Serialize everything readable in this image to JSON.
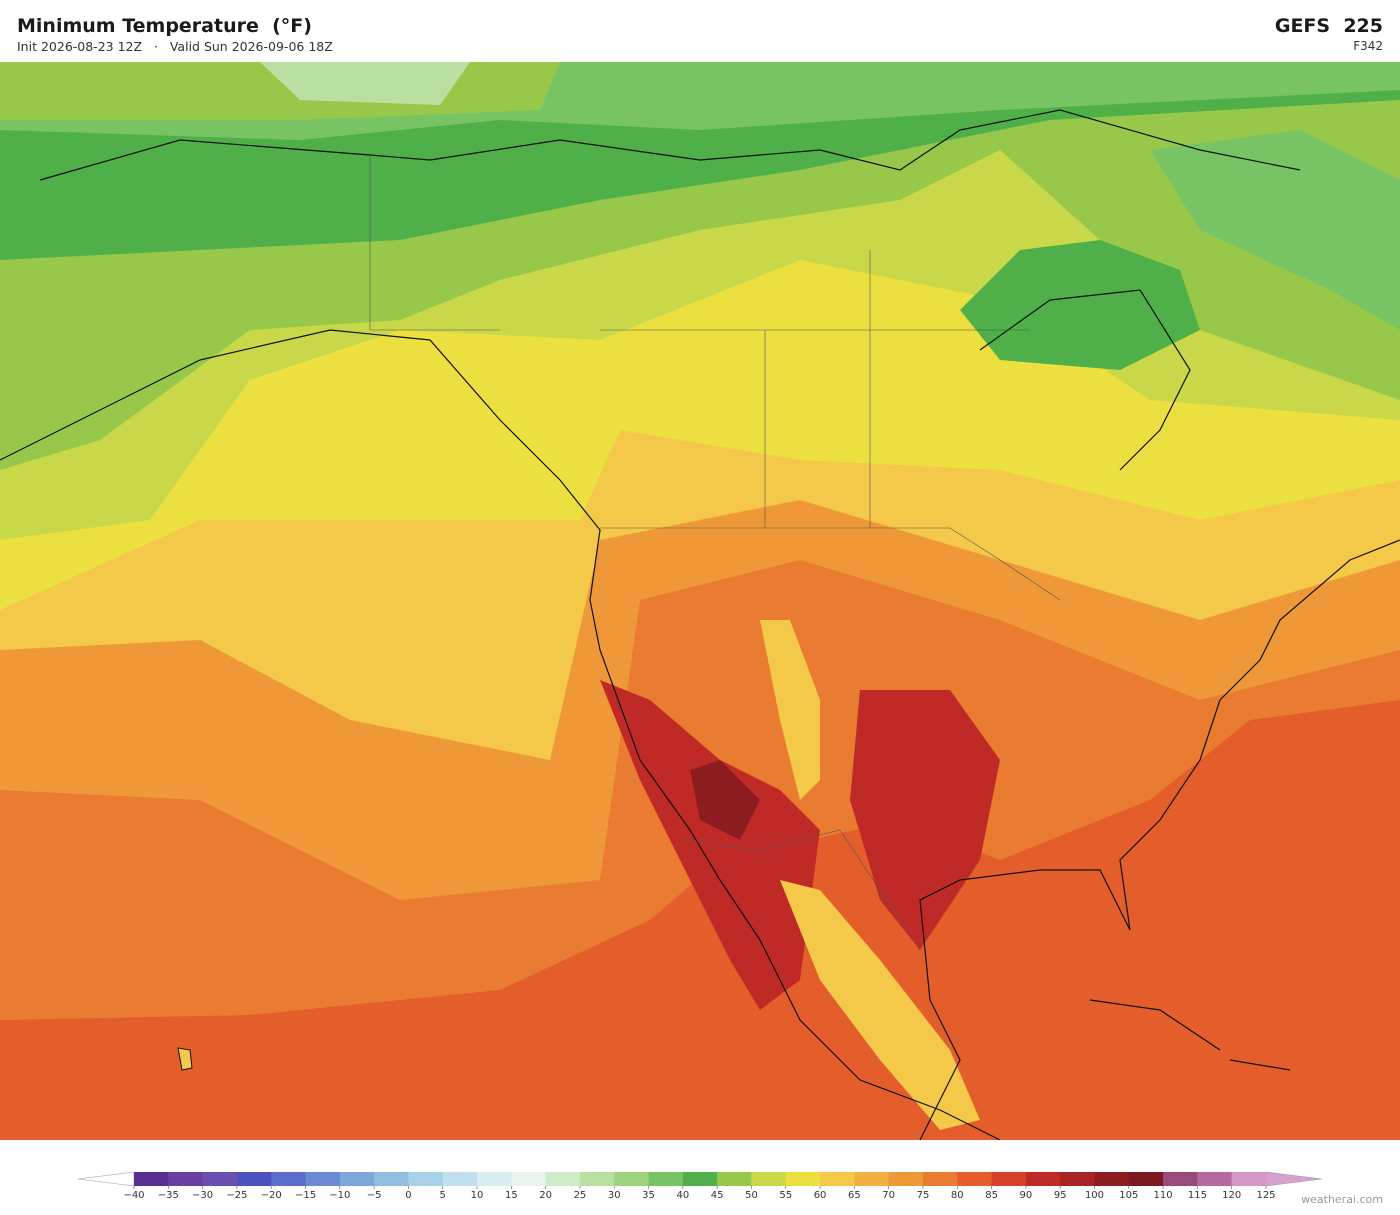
{
  "header": {
    "title": "Minimum Temperature  (°F)",
    "subtitle": "Init 2026-08-23 12Z   ·   Valid Sun 2026-09-06 18Z",
    "model": "GEFS  225",
    "forecast_hour": "F342"
  },
  "colorbar": {
    "ticks": [
      {
        "value": -40,
        "label": "−40"
      },
      {
        "value": -35,
        "label": "−35"
      },
      {
        "value": -30,
        "label": "−30"
      },
      {
        "value": -25,
        "label": "−25"
      },
      {
        "value": -20,
        "label": "−20"
      },
      {
        "value": -15,
        "label": "−15"
      },
      {
        "value": -10,
        "label": "−10"
      },
      {
        "value": -5,
        "label": "−5"
      },
      0,
      5,
      10,
      15,
      20,
      25,
      30,
      35,
      40,
      45,
      50,
      55,
      60,
      65,
      70,
      75,
      80,
      85,
      90,
      95,
      100,
      105,
      110,
      115,
      120,
      125
    ],
    "colors": [
      "#5a2d91",
      "#6a3ea0",
      "#6b4fb0",
      "#4e4fc0",
      "#5a6ccc",
      "#6a8ad4",
      "#7ea6d8",
      "#92bde0",
      "#a8d0e8",
      "#c0e0ee",
      "#d8ecf2",
      "#e8f4ec",
      "#d0ebc8",
      "#b8e0a0",
      "#9ed47e",
      "#78c464",
      "#4fb04a",
      "#98c84a",
      "#c8d848",
      "#ece040",
      "#f4c848",
      "#f2b040",
      "#ee9838",
      "#ea7c32",
      "#e45e2c",
      "#d84028",
      "#c02a26",
      "#a82424",
      "#8c1c20",
      "#7a1a20",
      "#9a4a7a",
      "#b868a0",
      "#d498c8"
    ],
    "under_color": "#ffffff",
    "over_color": "#d8a0cc"
  },
  "watermark": "weatherai.com"
}
